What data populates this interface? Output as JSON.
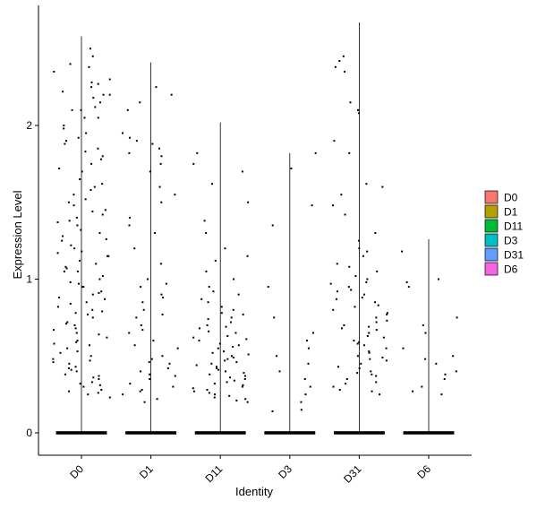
{
  "chart_data": {
    "type": "violin",
    "xlabel": "Identity",
    "ylabel": "Expression Level",
    "categories": [
      "D0",
      "D1",
      "D11",
      "D3",
      "D31",
      "D6"
    ],
    "ylim": [
      -0.15,
      2.8
    ],
    "yticks": [
      0,
      1,
      2
    ],
    "grid": false,
    "legend_position": "right",
    "series": [
      {
        "name": "D0",
        "color": "#F8766D",
        "max": 2.58,
        "zero_width": 0.45
      },
      {
        "name": "D1",
        "color": "#B79F00",
        "max": 2.41,
        "zero_width": 0.45
      },
      {
        "name": "D11",
        "color": "#00BA38",
        "max": 2.02,
        "zero_width": 0.45
      },
      {
        "name": "D3",
        "color": "#00BFC4",
        "max": 1.82,
        "zero_width": 0.45
      },
      {
        "name": "D31",
        "color": "#619CFF",
        "max": 2.67,
        "zero_width": 0.45
      },
      {
        "name": "D6",
        "color": "#F564E3",
        "max": 1.26,
        "zero_width": 0.45
      }
    ],
    "points": {
      "D0": [
        2.5,
        2.4,
        2.38,
        2.3,
        2.28,
        2.25,
        2.22,
        2.2,
        2.18,
        2.15,
        2.12,
        2.1,
        2.05,
        2.0,
        1.95,
        1.9,
        1.88,
        1.85,
        1.8,
        1.78,
        1.72,
        1.65,
        1.6,
        1.55,
        1.5,
        1.48,
        1.45,
        1.42,
        1.4,
        1.35,
        1.3,
        1.28,
        1.25,
        1.22,
        1.2,
        1.18,
        1.15,
        1.12,
        1.1,
        1.08,
        1.05,
        1.02,
        1.0,
        0.98,
        0.95,
        0.92,
        0.9,
        0.88,
        0.85,
        0.82,
        0.8,
        0.78,
        0.75,
        0.72,
        0.7,
        0.68,
        0.65,
        0.62,
        0.6,
        0.58,
        0.55,
        0.52,
        0.5,
        0.48,
        0.45,
        0.42,
        0.4,
        0.38,
        0.35,
        0.32,
        0.3,
        0.28,
        0.25,
        2.45,
        2.35,
        2.05,
        1.92,
        1.7,
        1.58,
        1.38,
        1.32,
        1.15,
        1.05,
        0.95,
        0.87,
        0.77,
        0.67,
        0.57,
        0.47,
        0.43,
        0.37,
        0.33,
        0.27,
        2.27,
        2.2,
        2.1,
        1.98,
        1.83,
        1.75,
        1.62,
        1.52,
        1.44,
        1.37,
        1.26,
        1.17,
        1.07,
        0.97,
        0.91,
        0.84,
        0.79,
        0.71,
        0.64,
        0.59,
        0.53,
        0.46,
        0.41,
        0.36,
        0.31,
        0.26,
        0.23
      ],
      "D1": [
        2.25,
        2.2,
        2.15,
        1.95,
        1.9,
        1.88,
        1.85,
        1.8,
        1.75,
        1.7,
        1.6,
        1.55,
        1.5,
        1.4,
        1.3,
        1.2,
        1.1,
        1.0,
        0.95,
        0.9,
        0.85,
        0.8,
        0.75,
        0.7,
        0.65,
        0.6,
        0.55,
        0.5,
        0.48,
        0.45,
        0.42,
        0.4,
        0.38,
        0.35,
        0.32,
        0.3,
        0.28,
        0.25,
        0.22,
        0.2,
        2.1,
        1.92,
        1.82,
        1.35,
        0.97,
        0.88,
        0.77,
        0.67,
        0.57,
        0.46,
        0.37,
        0.27
      ],
      "D11": [
        1.82,
        1.7,
        1.62,
        1.5,
        1.38,
        1.3,
        1.2,
        1.15,
        1.05,
        1.0,
        0.95,
        0.9,
        0.85,
        0.82,
        0.8,
        0.78,
        0.75,
        0.72,
        0.7,
        0.68,
        0.65,
        0.62,
        0.6,
        0.58,
        0.55,
        0.52,
        0.5,
        0.48,
        0.47,
        0.45,
        0.43,
        0.42,
        0.4,
        0.38,
        0.37,
        0.35,
        0.33,
        0.32,
        0.3,
        0.28,
        0.27,
        0.25,
        0.23,
        0.22,
        0.2,
        1.75,
        1.12,
        0.92,
        0.87,
        0.77,
        0.66,
        0.61,
        0.56,
        0.51,
        0.46,
        0.41,
        0.36,
        0.31,
        0.26,
        0.21,
        0.69,
        0.63,
        0.53,
        0.44,
        0.39,
        0.34,
        0.29,
        0.24,
        0.74,
        0.57,
        0.49
      ],
      "D3": [
        1.82,
        1.72,
        1.48,
        1.35,
        0.95,
        0.75,
        0.65,
        0.6,
        0.5,
        0.4,
        0.3,
        0.25,
        0.2,
        0.15,
        0.14,
        0.55,
        0.45,
        0.35
      ],
      "D31": [
        2.45,
        2.42,
        2.38,
        2.35,
        2.15,
        2.1,
        2.08,
        1.9,
        1.82,
        1.62,
        1.6,
        1.55,
        1.48,
        1.42,
        1.3,
        1.2,
        1.18,
        1.15,
        1.1,
        1.05,
        1.02,
        1.0,
        0.98,
        0.95,
        0.92,
        0.9,
        0.88,
        0.85,
        0.82,
        0.8,
        0.78,
        0.75,
        0.72,
        0.7,
        0.68,
        0.65,
        0.62,
        0.6,
        0.58,
        0.55,
        0.52,
        0.5,
        0.48,
        0.45,
        0.42,
        0.4,
        0.38,
        0.35,
        0.32,
        0.3,
        0.28,
        0.25,
        1.25,
        1.08,
        0.97,
        0.87,
        0.77,
        0.67,
        0.57,
        0.47,
        0.37,
        0.27,
        0.83,
        0.73,
        0.63,
        0.53,
        0.43,
        0.33,
        0.93,
        0.69,
        0.59,
        0.49,
        0.39
      ],
      "D6": [
        1.18,
        1.0,
        0.98,
        0.95,
        0.75,
        0.7,
        0.65,
        0.55,
        0.5,
        0.48,
        0.45,
        0.4,
        0.38,
        0.35,
        0.3,
        0.27,
        0.25
      ]
    }
  }
}
